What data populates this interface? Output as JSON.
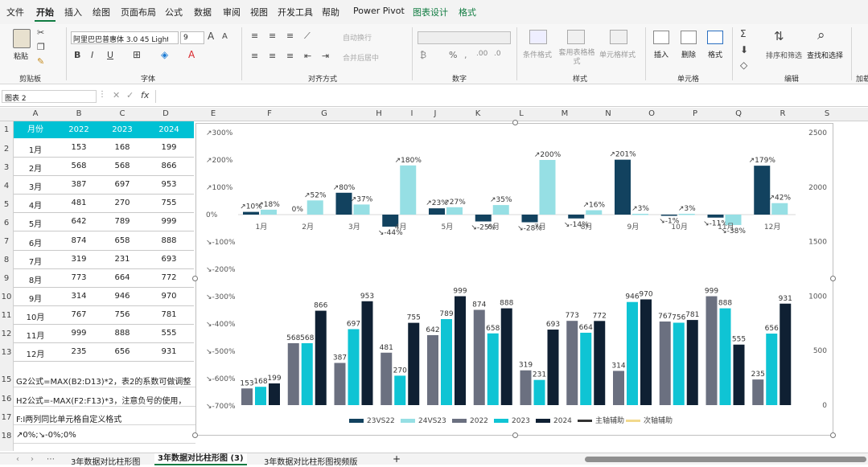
{
  "menu": {
    "items": [
      "文件",
      "开始",
      "插入",
      "绘图",
      "页面布局",
      "公式",
      "数据",
      "审阅",
      "视图",
      "开发工具",
      "帮助",
      "Power Pivot",
      "图表设计",
      "格式"
    ],
    "active": "开始"
  },
  "ribbon": {
    "paste": "粘贴",
    "clipboard": "剪贴板",
    "font_name": "阿里巴巴普惠体 3.0 45 Light",
    "font_size": "9",
    "font_group": "字体",
    "wrap": "自动换行",
    "merge": "合并后居中",
    "align_group": "对齐方式",
    "number_group": "数字",
    "cond_format": "条件格式",
    "table_format": "套用表格格式",
    "cell_style": "单元格样式",
    "style_group": "样式",
    "insert": "插入",
    "delete": "删除",
    "format": "格式",
    "cells_group": "单元格",
    "sort_filter": "排序和筛选",
    "find_select": "查找和选择",
    "edit_group": "编辑",
    "addin_group": "加载"
  },
  "formula_bar": {
    "name_box": "图表 2",
    "fx": "fx"
  },
  "columns": [
    "A",
    "B",
    "C",
    "D",
    "E",
    "F",
    "G",
    "H",
    "I",
    "J",
    "K",
    "L",
    "M",
    "N",
    "O",
    "P",
    "Q",
    "R",
    "S"
  ],
  "rows": [
    "1",
    "2",
    "3",
    "4",
    "5",
    "6",
    "7",
    "8",
    "9",
    "10",
    "11",
    "12",
    "13",
    "15",
    "16",
    "17",
    "18"
  ],
  "table": {
    "headers": [
      "月份",
      "2022",
      "2023",
      "2024"
    ],
    "rows": [
      [
        "1月",
        "153",
        "168",
        "199"
      ],
      [
        "2月",
        "568",
        "568",
        "866"
      ],
      [
        "3月",
        "387",
        "697",
        "953"
      ],
      [
        "4月",
        "481",
        "270",
        "755"
      ],
      [
        "5月",
        "642",
        "789",
        "999"
      ],
      [
        "6月",
        "874",
        "658",
        "888"
      ],
      [
        "7月",
        "319",
        "231",
        "693"
      ],
      [
        "8月",
        "773",
        "664",
        "772"
      ],
      [
        "9月",
        "314",
        "946",
        "970"
      ],
      [
        "10月",
        "767",
        "756",
        "781"
      ],
      [
        "11月",
        "999",
        "888",
        "555"
      ],
      [
        "12月",
        "235",
        "656",
        "931"
      ]
    ]
  },
  "notes": [
    "G2公式=MAX(B2:D13)*2，表2的系数可做调整",
    "H2公式=-MAX(F2:F13)*3，注意负号的使用，",
    "F:I两列同比单元格自定义格式",
    "↗0%;↘-0%;0%"
  ],
  "chart_data": {
    "type": "bar",
    "categories": [
      "1月",
      "2月",
      "3月",
      "4月",
      "5月",
      "6月",
      "7月",
      "8月",
      "9月",
      "10月",
      "11月",
      "12月"
    ],
    "secondary_axis": {
      "ticks": [
        "2500",
        "2000",
        "1500",
        "1000",
        "500",
        "0"
      ]
    },
    "primary_axis": {
      "ticks": [
        "↗300%",
        "↗200%",
        "↗100%",
        "0%",
        "↘-100%",
        "↘-200%",
        "↘-300%",
        "↘-400%",
        "↘-500%",
        "↘-600%",
        "↘-700%"
      ]
    },
    "growth_series": [
      {
        "name": "23VS22",
        "color": "#12425f",
        "values": [
          10,
          0,
          80,
          -44,
          23,
          -25,
          -28,
          -14,
          201,
          -1,
          -11,
          179
        ]
      },
      {
        "name": "24VS23",
        "color": "#96dfe4",
        "values": [
          18,
          52,
          37,
          180,
          27,
          35,
          200,
          16,
          3,
          3,
          -38,
          42
        ]
      }
    ],
    "growth_labels": [
      [
        "↗10%",
        "0%",
        "↗80%",
        "↘-44%",
        "↗23%",
        "↘-25%",
        "↘-28%",
        "↘-14%",
        "↗201%",
        "↘-1%",
        "↘-11%",
        "↗179%"
      ],
      [
        "↗18%",
        "↗52%",
        "↗37%",
        "↗180%",
        "↗27%",
        "↗35%",
        "↗200%",
        "↗16%",
        "↗3%",
        "↗3%",
        "↘-38%",
        "↗42%"
      ]
    ],
    "value_series": [
      {
        "name": "2022",
        "color": "#6b7080",
        "values": [
          153,
          568,
          387,
          481,
          642,
          874,
          319,
          773,
          314,
          767,
          999,
          235
        ]
      },
      {
        "name": "2023",
        "color": "#0fc4d4",
        "values": [
          168,
          568,
          697,
          270,
          789,
          658,
          231,
          664,
          946,
          756,
          888,
          656
        ]
      },
      {
        "name": "2024",
        "color": "#0f2033",
        "values": [
          199,
          866,
          953,
          755,
          999,
          888,
          693,
          772,
          970,
          781,
          555,
          931
        ]
      }
    ],
    "legend": [
      {
        "name": "23VS22",
        "color": "#12425f",
        "kind": "bar"
      },
      {
        "name": "24VS23",
        "color": "#96dfe4",
        "kind": "bar"
      },
      {
        "name": "2022",
        "color": "#6b7080",
        "kind": "bar"
      },
      {
        "name": "2023",
        "color": "#0fc4d4",
        "kind": "bar"
      },
      {
        "name": "2024",
        "color": "#0f2033",
        "kind": "bar"
      },
      {
        "name": "主轴辅助",
        "color": "#333333",
        "kind": "line"
      },
      {
        "name": "次轴辅助",
        "color": "#f2d98c",
        "kind": "line"
      }
    ],
    "legend_position": "bottom"
  },
  "sheet_tabs": [
    "3年数据对比柱形图",
    "3年数据对比柱形图 (3)",
    "3年数据对比柱形图视频版"
  ],
  "active_tab": "3年数据对比柱形图 (3)"
}
